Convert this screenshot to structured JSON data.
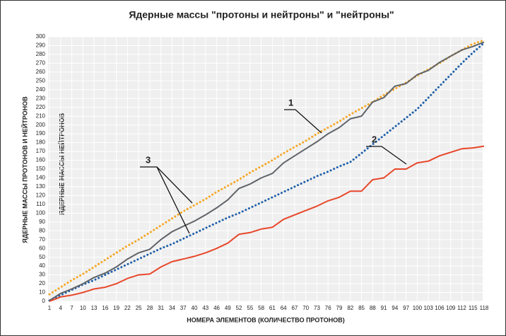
{
  "chart_data": {
    "type": "line",
    "title": "Ядерные массы \"протоны и нейтроны\" и \"нейтроны\"",
    "xlabel": "НОМЕРА ЭЛЕМЕНТОВ (КОЛИЧЕСТВО ПРОТОНОВ)",
    "ylabel": "ЯДЕРНЫЕ МАССЫ ПРОТОНОВ И НЕЙТРОНОВ",
    "ylabel_inner": "ЯДЕРНЫЕ МАССЫ НЕЙТРОНОВ",
    "annotations": [
      "1",
      "2",
      "3"
    ],
    "x": [
      1,
      4,
      7,
      10,
      13,
      16,
      19,
      22,
      25,
      28,
      31,
      34,
      37,
      40,
      43,
      46,
      49,
      52,
      55,
      58,
      61,
      64,
      67,
      70,
      73,
      76,
      79,
      82,
      85,
      88,
      91,
      94,
      97,
      100,
      103,
      106,
      109,
      112,
      115,
      118
    ],
    "series": [
      {
        "color": "#f5a623",
        "style": "dotted",
        "values": [
          8,
          16,
          24,
          31,
          39,
          47,
          55,
          63,
          70,
          78,
          86,
          94,
          102,
          109,
          116,
          124,
          131,
          138,
          146,
          153,
          160,
          168,
          175,
          182,
          190,
          197,
          204,
          212,
          219,
          226,
          234,
          241,
          248,
          256,
          263,
          270,
          278,
          285,
          292,
          296
        ]
      },
      {
        "color": "#1f5fa8",
        "style": "dotted",
        "values": [
          1,
          7,
          13,
          19,
          24,
          30,
          36,
          42,
          48,
          54,
          60,
          65,
          71,
          77,
          83,
          89,
          95,
          100,
          106,
          112,
          118,
          124,
          130,
          136,
          142,
          147,
          153,
          158,
          168,
          178,
          188,
          198,
          208,
          218,
          231,
          244,
          257,
          270,
          282,
          293
        ]
      },
      {
        "color": "#5f6368",
        "style": "solid",
        "values": [
          1,
          9,
          14,
          20,
          27,
          32,
          39,
          48,
          55,
          59,
          70,
          79,
          85,
          91,
          98,
          106,
          115,
          128,
          133,
          140,
          145,
          157,
          165,
          173,
          181,
          190,
          197,
          207,
          210,
          226,
          231,
          244,
          247,
          257,
          262,
          271,
          278,
          285,
          289,
          294
        ]
      },
      {
        "color": "#e8472a",
        "style": "solid",
        "values": [
          0,
          5,
          7,
          10,
          14,
          16,
          20,
          26,
          30,
          31,
          39,
          45,
          48,
          51,
          55,
          60,
          66,
          76,
          78,
          82,
          84,
          93,
          98,
          103,
          108,
          114,
          118,
          125,
          125,
          138,
          140,
          150,
          150,
          157,
          159,
          165,
          169,
          173,
          174,
          176
        ]
      }
    ],
    "xlim": [
      1,
      118
    ],
    "xticks": [
      1,
      4,
      7,
      10,
      13,
      16,
      19,
      22,
      25,
      28,
      31,
      34,
      37,
      40,
      43,
      46,
      49,
      52,
      55,
      58,
      61,
      64,
      67,
      70,
      73,
      76,
      79,
      82,
      85,
      88,
      91,
      94,
      97,
      100,
      103,
      106,
      109,
      112,
      115,
      118
    ],
    "ylim": [
      0,
      300
    ],
    "yticks": [
      0,
      10,
      20,
      30,
      40,
      50,
      60,
      70,
      80,
      90,
      100,
      110,
      120,
      130,
      140,
      150,
      160,
      170,
      180,
      190,
      200,
      210,
      220,
      230,
      240,
      250,
      260,
      270,
      280,
      290,
      300
    ],
    "grid": true
  }
}
